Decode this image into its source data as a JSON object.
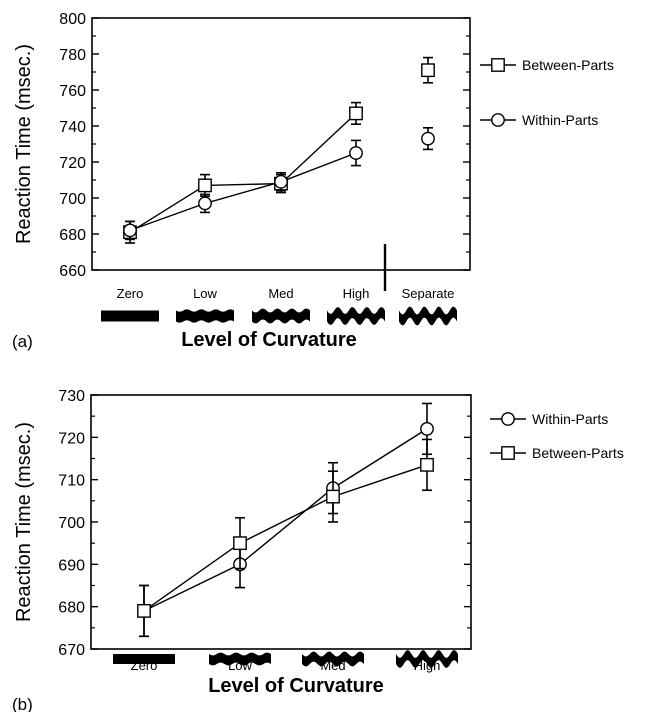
{
  "chart_data": [
    {
      "panel_label": "(a)",
      "type": "line",
      "ylabel": "Reaction Time (msec.)",
      "xlabel": "Level of Curvature",
      "ylim": [
        660,
        800
      ],
      "yticks": [
        660,
        680,
        700,
        720,
        740,
        760,
        780,
        800
      ],
      "categories": [
        "Zero",
        "Low",
        "Med",
        "High",
        "Separate"
      ],
      "connected_categories": 4,
      "legend_position": "right",
      "series": [
        {
          "name": "Between-Parts",
          "marker": "square",
          "values": [
            681,
            707,
            708,
            747,
            771
          ],
          "errors": [
            6,
            6,
            5,
            6,
            7
          ]
        },
        {
          "name": "Within-Parts",
          "marker": "circle",
          "values": [
            682,
            697,
            709,
            725,
            733
          ],
          "errors": [
            5,
            5,
            5,
            7,
            6
          ]
        }
      ]
    },
    {
      "panel_label": "(b)",
      "type": "line",
      "ylabel": "Reaction Time (msec.)",
      "xlabel": "Level of Curvature",
      "ylim": [
        670,
        730
      ],
      "yticks": [
        670,
        680,
        690,
        700,
        710,
        720,
        730
      ],
      "categories": [
        "Zero",
        "Low",
        "Med",
        "High"
      ],
      "connected_categories": 4,
      "legend_position": "right",
      "series": [
        {
          "name": "Within-Parts",
          "marker": "circle",
          "values": [
            679,
            690,
            708,
            722
          ],
          "errors": [
            6,
            5.5,
            6,
            6
          ]
        },
        {
          "name": "Between-Parts",
          "marker": "square",
          "values": [
            679,
            695,
            706,
            713.5
          ],
          "errors": [
            6,
            6,
            6,
            6
          ]
        }
      ]
    }
  ]
}
